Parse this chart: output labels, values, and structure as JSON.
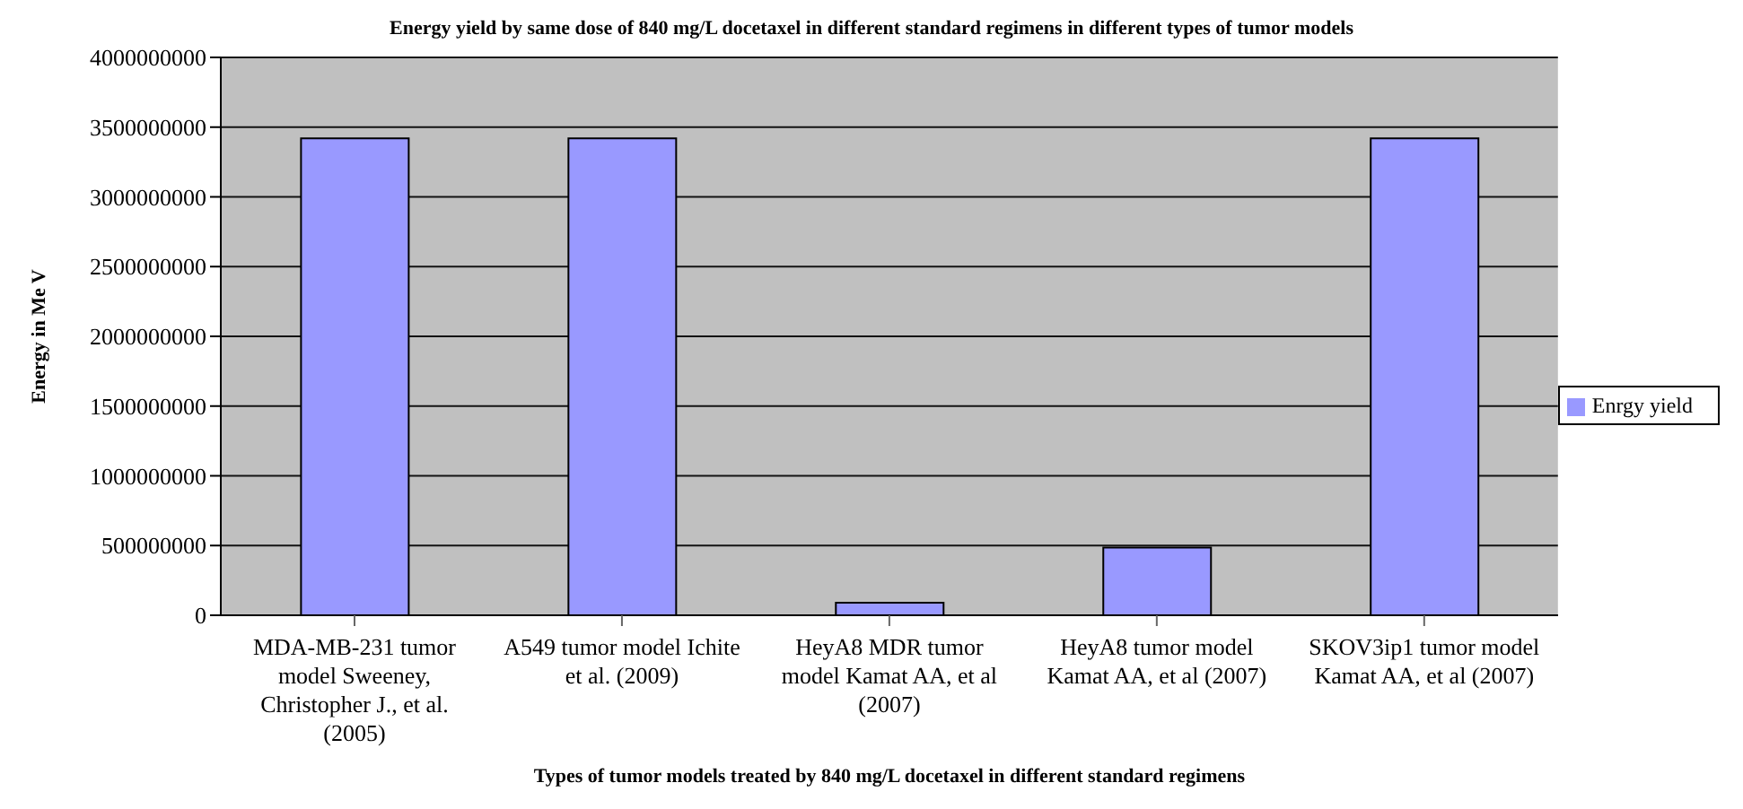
{
  "chart_data": {
    "type": "bar",
    "title": "Energy yield by same dose of 840 mg/L docetaxel in different standard regimens in different types of tumor models",
    "xlabel": "Types of tumor models treated by 840 mg/L docetaxel in different standard regimens",
    "ylabel": "Energy in Me V",
    "categories": [
      "MDA-MB-231 tumor model Sweeney, Christopher J., et al. (2005)",
      "A549 tumor model Ichite et al. (2009)",
      "HeyA8 MDR tumor model Kamat AA, et al (2007)",
      "HeyA8 tumor model Kamat AA, et al (2007)",
      "SKOV3ip1 tumor model Kamat AA, et al (2007)"
    ],
    "series": [
      {
        "name": "Enrgy yield",
        "color": "#9999ff",
        "values": [
          3420000000,
          3420000000,
          90000000,
          485000000,
          3420000000
        ]
      }
    ],
    "ylim": [
      0,
      4000000000
    ],
    "yticks": [
      0,
      500000000,
      1000000000,
      1500000000,
      2000000000,
      2500000000,
      3000000000,
      3500000000,
      4000000000
    ],
    "grid": "y",
    "legend": "right"
  }
}
